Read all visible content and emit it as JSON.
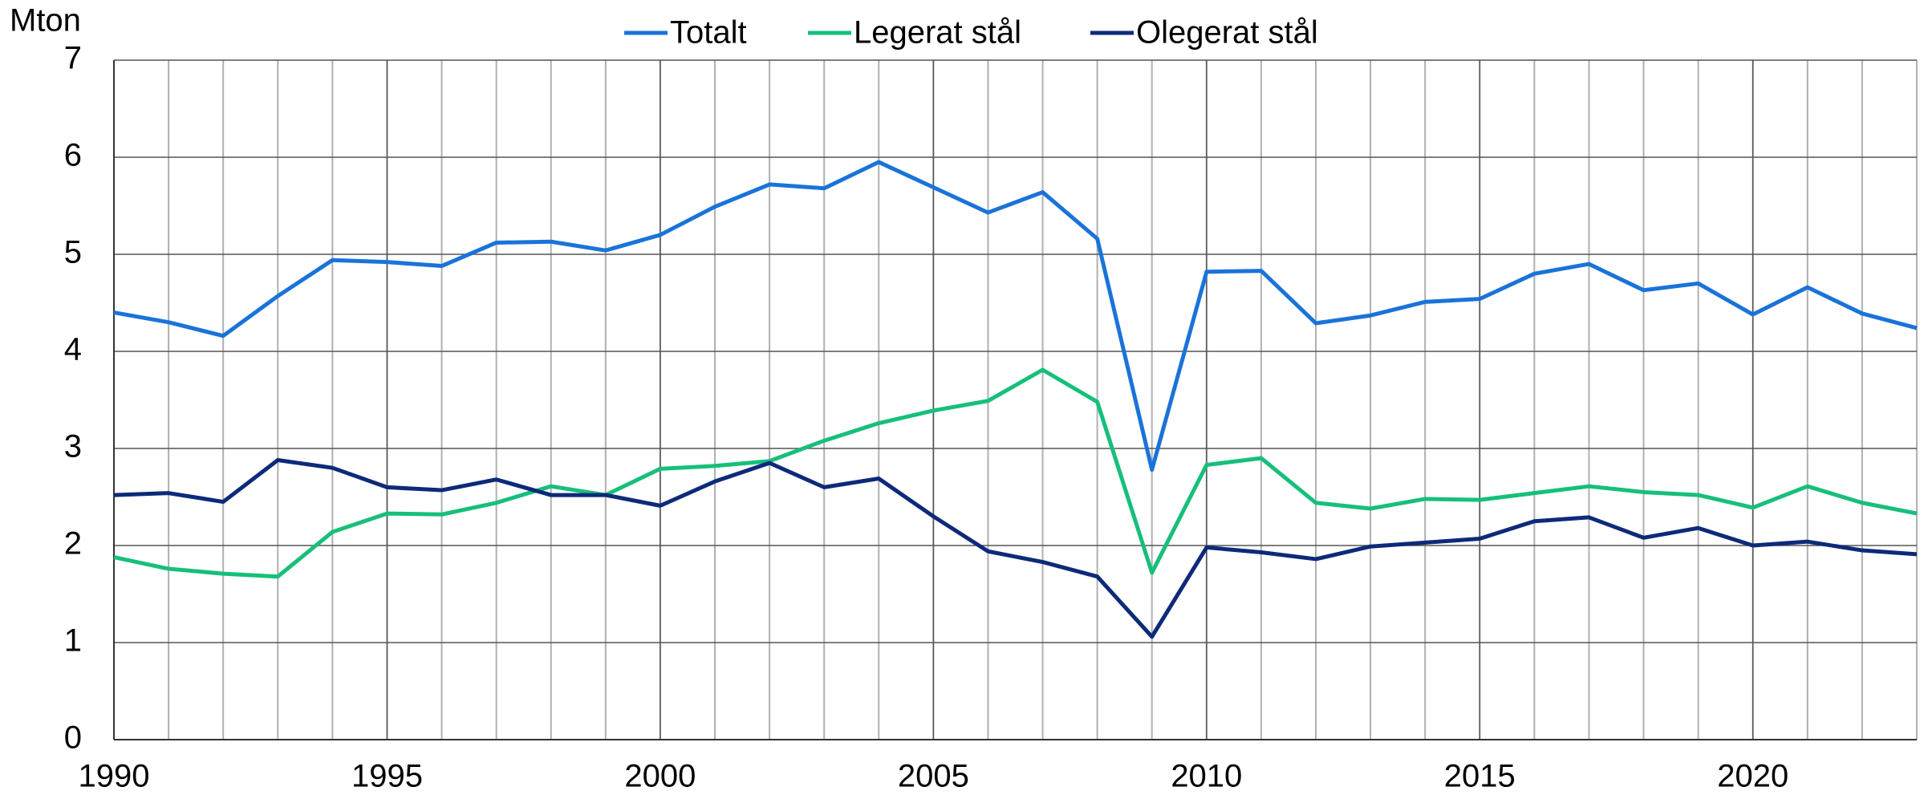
{
  "chart_data": {
    "type": "line",
    "y_label": "Mton",
    "x": [
      1990,
      1991,
      1992,
      1993,
      1994,
      1995,
      1996,
      1997,
      1998,
      1999,
      2000,
      2001,
      2002,
      2003,
      2004,
      2005,
      2006,
      2007,
      2008,
      2009,
      2010,
      2011,
      2012,
      2013,
      2014,
      2015,
      2016,
      2017,
      2018,
      2019,
      2020,
      2021,
      2022,
      2023
    ],
    "series": [
      {
        "name": "Totalt",
        "color": "#1a73d9",
        "values": [
          4.4,
          4.3,
          4.16,
          4.57,
          4.94,
          4.92,
          4.88,
          5.12,
          5.13,
          5.04,
          5.2,
          5.49,
          5.72,
          5.68,
          5.95,
          5.69,
          5.43,
          5.64,
          5.16,
          2.78,
          4.82,
          4.83,
          4.29,
          4.37,
          4.51,
          4.54,
          4.8,
          4.9,
          4.63,
          4.7,
          4.38,
          4.66,
          4.39,
          4.24
        ]
      },
      {
        "name": "Legerat stål",
        "color": "#17bf7a",
        "values": [
          1.88,
          1.76,
          1.71,
          1.68,
          2.14,
          2.33,
          2.32,
          2.44,
          2.61,
          2.52,
          2.79,
          2.82,
          2.87,
          3.08,
          3.26,
          3.39,
          3.49,
          3.81,
          3.48,
          1.72,
          2.83,
          2.9,
          2.44,
          2.38,
          2.48,
          2.47,
          2.54,
          2.61,
          2.55,
          2.52,
          2.39,
          2.61,
          2.44,
          2.33
        ]
      },
      {
        "name": "Olegerat stål",
        "color": "#0d2a7a",
        "values": [
          2.52,
          2.54,
          2.45,
          2.88,
          2.8,
          2.6,
          2.57,
          2.68,
          2.52,
          2.52,
          2.41,
          2.66,
          2.85,
          2.6,
          2.69,
          2.3,
          1.94,
          1.83,
          1.68,
          1.06,
          1.98,
          1.93,
          1.86,
          1.99,
          2.03,
          2.07,
          2.25,
          2.29,
          2.08,
          2.18,
          2.0,
          2.04,
          1.95,
          1.91
        ]
      }
    ],
    "xlim": [
      1990,
      2023
    ],
    "xticks": [
      1990,
      1995,
      2000,
      2005,
      2010,
      2015,
      2020
    ],
    "ylim": [
      0,
      7
    ],
    "yticks": [
      0,
      1,
      2,
      3,
      4,
      5,
      6,
      7
    ],
    "grid": true,
    "legend": "top"
  }
}
